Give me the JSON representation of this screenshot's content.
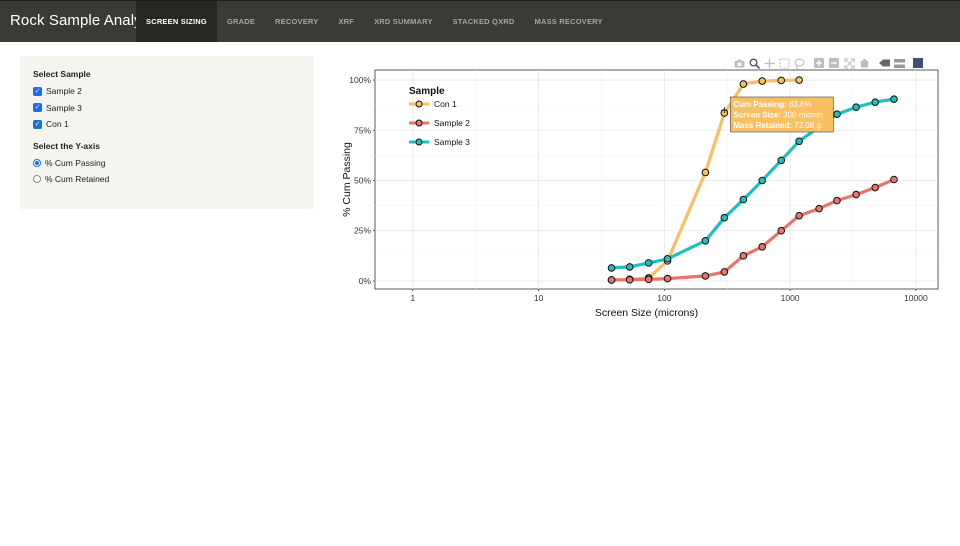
{
  "app": {
    "title": "Rock Sample Analysis",
    "tabs": [
      {
        "label": "SCREEN SIZING",
        "active": true
      },
      {
        "label": "GRADE"
      },
      {
        "label": "RECOVERY"
      },
      {
        "label": "XRF"
      },
      {
        "label": "XRD SUMMARY"
      },
      {
        "label": "STACKED QXRD"
      },
      {
        "label": "MASS RECOVERY"
      }
    ]
  },
  "sidebar": {
    "select_sample_label": "Select Sample",
    "samples": [
      {
        "label": "Sample 2",
        "checked": true
      },
      {
        "label": "Sample 3",
        "checked": true
      },
      {
        "label": "Con 1",
        "checked": true
      }
    ],
    "y_axis_label": "Select the Y-axis",
    "y_axis_options": [
      {
        "label": "% Cum Passing",
        "selected": true
      },
      {
        "label": "% Cum Retained",
        "selected": false
      }
    ]
  },
  "toolbar_icons": [
    "camera-icon",
    "zoom-icon",
    "pan-icon",
    "box-select-icon",
    "lasso-icon",
    "zoom-in-icon",
    "zoom-out-icon",
    "autoscale-icon",
    "reset-axes-icon",
    "spike-lines-icon",
    "compare-hover-icon",
    "plotly-logo-icon"
  ],
  "tooltip": {
    "line1_label": "Cum Passing:",
    "line1_value": "83.6%",
    "line2_label": "Screen Size:",
    "line2_value": "300 micron",
    "line3_label": "Mass Retained:",
    "line3_value": "72.08 g"
  },
  "chart_data": {
    "type": "line",
    "xlabel": "Screen Size (microns)",
    "ylabel": "% Cum Passing",
    "xscale": "log",
    "xlim": [
      0.5,
      15000
    ],
    "ylim": [
      -4,
      105
    ],
    "xticks": [
      1,
      10,
      100,
      1000,
      10000
    ],
    "xtick_labels": [
      "1",
      "10",
      "100",
      "1000",
      "10000"
    ],
    "yticks": [
      0,
      25,
      50,
      75,
      100
    ],
    "ytick_labels": [
      "0%",
      "25%",
      "50%",
      "75%",
      "100%"
    ],
    "grid": true,
    "legend_title": "Sample",
    "legend_position": "top-left",
    "series": [
      {
        "name": "Con 1",
        "color": "#f8c060",
        "x": [
          38,
          53,
          75,
          106,
          212,
          300,
          425,
          600,
          850,
          1180
        ],
        "y": [
          0.5,
          0.8,
          1.5,
          10,
          54,
          83.6,
          98,
          99.5,
          99.8,
          100
        ]
      },
      {
        "name": "Sample 2",
        "color": "#e8746c",
        "x": [
          38,
          53,
          75,
          106,
          212,
          300,
          425,
          600,
          850,
          1180,
          1700,
          2360,
          3350,
          4750,
          6700
        ],
        "y": [
          0.5,
          0.6,
          0.8,
          1.2,
          2.5,
          4.5,
          12.5,
          17,
          25,
          32.5,
          36,
          40,
          43,
          46.5,
          50.5
        ]
      },
      {
        "name": "Sample 3",
        "color": "#1fbfbf",
        "x": [
          38,
          53,
          75,
          106,
          212,
          300,
          425,
          600,
          850,
          1180,
          2360,
          3350,
          4750,
          6700
        ],
        "y": [
          6.5,
          7,
          9,
          11,
          20,
          31.5,
          40.5,
          50,
          60,
          69.5,
          83,
          86.5,
          89,
          90.5
        ]
      }
    ]
  }
}
